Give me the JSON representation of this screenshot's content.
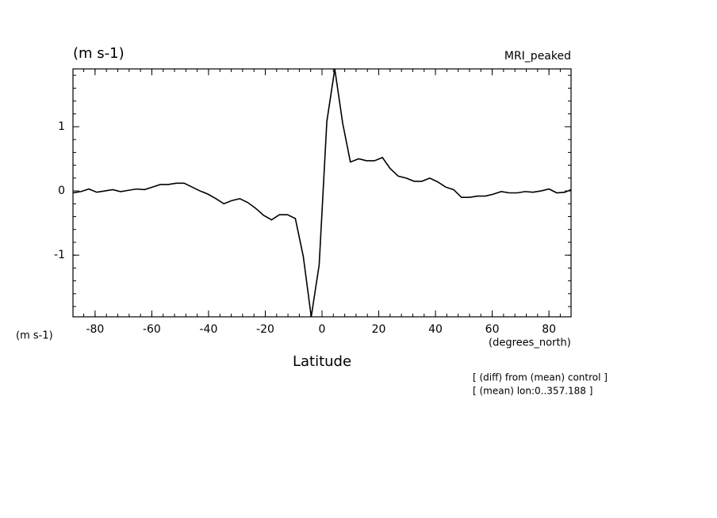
{
  "chart_data": {
    "type": "line",
    "unit_label": "(m s-1)",
    "title": "MRI_peaked",
    "y_unit_label": "(m s-1)",
    "x_unit_label": "(degrees_north)",
    "xlabel": "Latitude",
    "notes": [
      "[ (diff) from (mean) control ]",
      "[ (mean) lon:0..357.188 ]"
    ],
    "x": [
      -87.8,
      -85,
      -82.2,
      -79.4,
      -76.6,
      -73.8,
      -71,
      -68.2,
      -65.4,
      -62.6,
      -59.8,
      -57,
      -54.2,
      -51.4,
      -48.6,
      -45.8,
      -43,
      -40.2,
      -37.4,
      -34.6,
      -31.8,
      -29,
      -26.2,
      -23.4,
      -20.6,
      -17.8,
      -15,
      -12.2,
      -9.4,
      -6.6,
      -3.8,
      -1,
      1.7,
      4.5,
      7.3,
      10,
      12.9,
      15.7,
      18.5,
      21.3,
      24,
      26.9,
      29.7,
      32.5,
      35.2,
      38,
      40.8,
      43.6,
      46.4,
      49.2,
      52,
      54.8,
      57.6,
      60.4,
      63.2,
      66,
      68.8,
      71.6,
      74.4,
      77.2,
      80,
      82.8,
      85.6,
      87.8
    ],
    "series": [
      {
        "color": "#000000",
        "values": [
          -0.03,
          -0.01,
          0.03,
          -0.02,
          0,
          0.02,
          -0.01,
          0.01,
          0.03,
          0.02,
          0.06,
          0.1,
          0.1,
          0.12,
          0.12,
          0.06,
          0,
          -0.05,
          -0.12,
          -0.2,
          -0.15,
          -0.12,
          -0.18,
          -0.27,
          -0.38,
          -0.45,
          -0.37,
          -0.37,
          -0.43,
          -1.02,
          -1.96,
          -1.15,
          1.08,
          1.9,
          1.05,
          0.45,
          0.5,
          0.47,
          0.47,
          0.52,
          0.35,
          0.23,
          0.2,
          0.15,
          0.15,
          0.2,
          0.14,
          0.06,
          0.02,
          -0.1,
          -0.1,
          -0.08,
          -0.08,
          -0.05,
          -0.01,
          -0.03,
          -0.03,
          -0.01,
          -0.02,
          0,
          0.03,
          -0.03,
          -0.02,
          0.02
        ]
      }
    ],
    "xlim": [
      -87.8,
      87.8
    ],
    "ylim": [
      -1.96,
      1.9
    ],
    "xticks": [
      -80,
      -60,
      -40,
      -20,
      0,
      20,
      40,
      60,
      80
    ],
    "yticks": [
      -1,
      0,
      1
    ],
    "grid": false
  }
}
